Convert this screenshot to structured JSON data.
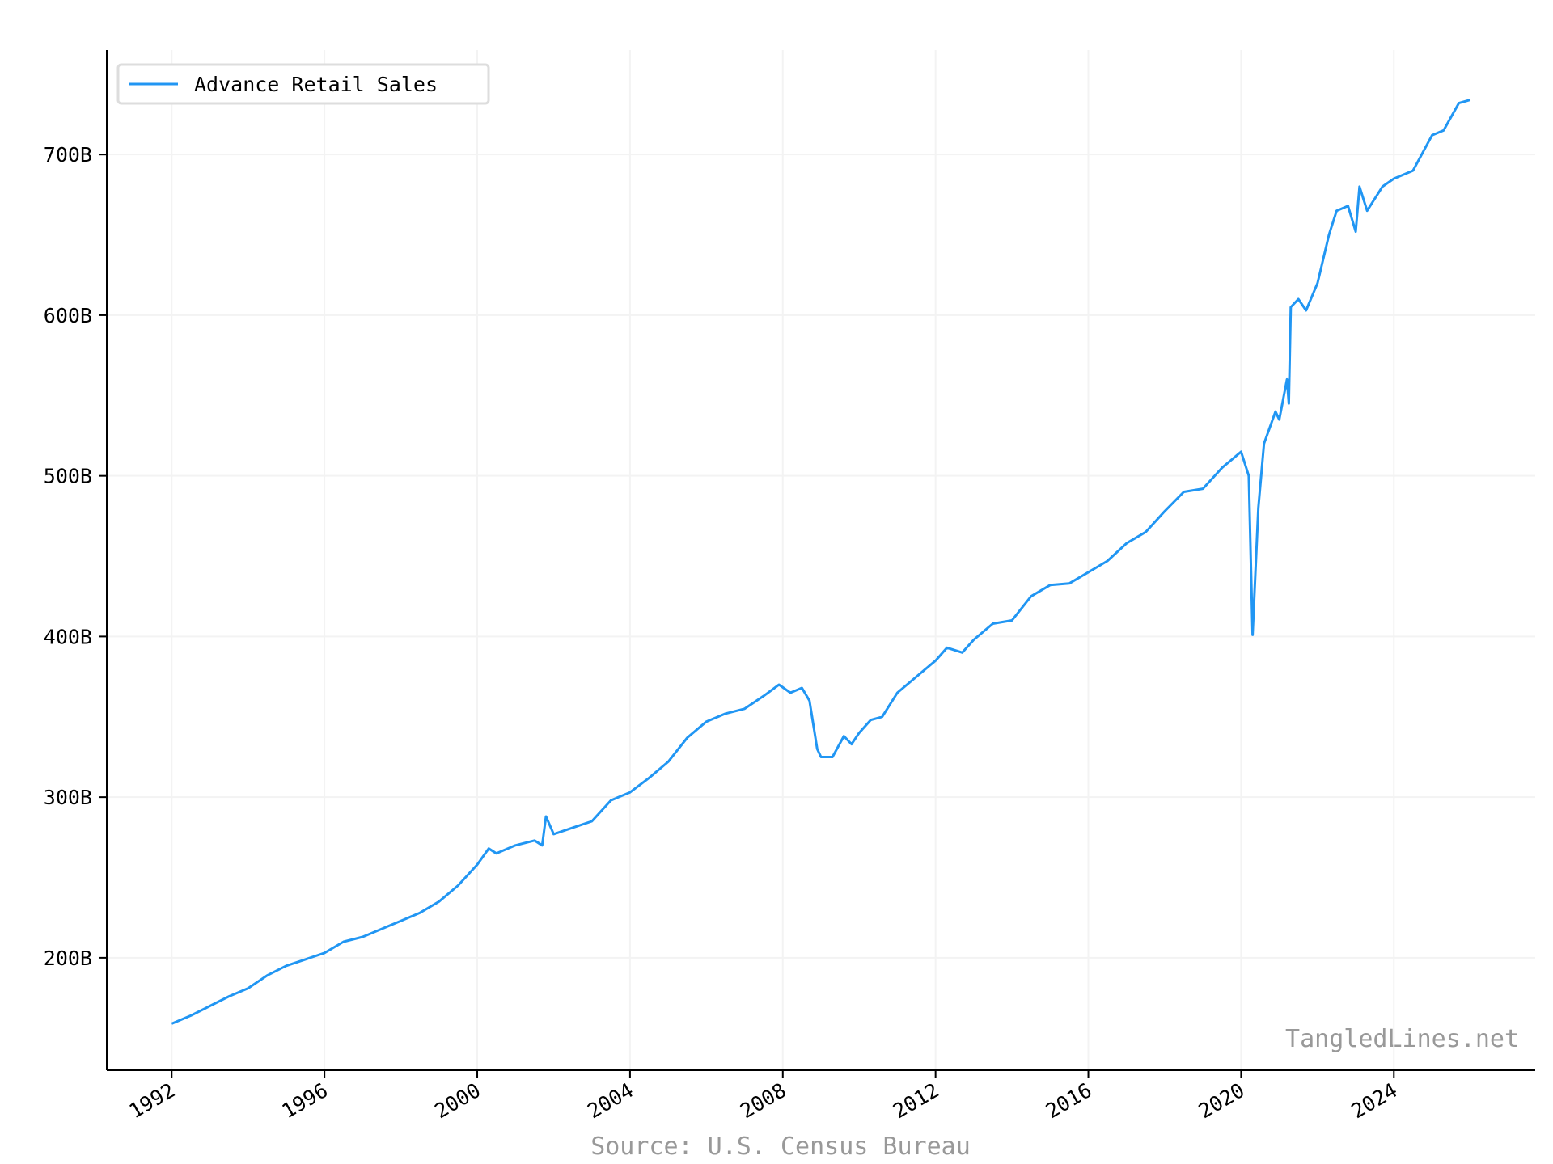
{
  "chart_data": {
    "type": "line",
    "x": [
      1992.0,
      1992.5,
      1993.0,
      1993.5,
      1994.0,
      1994.5,
      1995.0,
      1995.5,
      1996.0,
      1996.5,
      1997.0,
      1997.5,
      1998.0,
      1998.5,
      1999.0,
      1999.5,
      2000.0,
      2000.3,
      2000.5,
      2001.0,
      2001.5,
      2001.7,
      2001.8,
      2002.0,
      2002.5,
      2003.0,
      2003.5,
      2004.0,
      2004.5,
      2005.0,
      2005.5,
      2006.0,
      2006.5,
      2007.0,
      2007.5,
      2007.9,
      2008.2,
      2008.5,
      2008.7,
      2008.9,
      2009.0,
      2009.3,
      2009.6,
      2009.8,
      2010.0,
      2010.3,
      2010.6,
      2011.0,
      2011.5,
      2012.0,
      2012.3,
      2012.7,
      2013.0,
      2013.5,
      2014.0,
      2014.5,
      2015.0,
      2015.5,
      2016.0,
      2016.5,
      2017.0,
      2017.5,
      2018.0,
      2018.5,
      2019.0,
      2019.5,
      2020.0,
      2020.2,
      2020.3,
      2020.45,
      2020.6,
      2020.9,
      2021.0,
      2021.2,
      2021.25,
      2021.3,
      2021.5,
      2021.7,
      2022.0,
      2022.3,
      2022.5,
      2022.8,
      2023.0,
      2023.1,
      2023.3,
      2023.7,
      2024.0,
      2024.5,
      2025.0,
      2025.3,
      2025.7,
      2026.0
    ],
    "series": [
      {
        "name": "Advance Retail Sales",
        "color": "#2196f3",
        "values": [
          159,
          164,
          170,
          176,
          181,
          189,
          195,
          199,
          203,
          210,
          213,
          218,
          223,
          228,
          235,
          245,
          258,
          268,
          265,
          270,
          273,
          270,
          288,
          277,
          281,
          285,
          298,
          303,
          312,
          322,
          337,
          347,
          352,
          355,
          363,
          370,
          365,
          368,
          360,
          330,
          325,
          325,
          338,
          333,
          340,
          348,
          350,
          365,
          375,
          385,
          393,
          390,
          398,
          408,
          410,
          425,
          432,
          433,
          440,
          447,
          458,
          465,
          478,
          490,
          492,
          505,
          515,
          500,
          401,
          480,
          520,
          540,
          535,
          560,
          545,
          605,
          610,
          603,
          620,
          650,
          665,
          668,
          652,
          680,
          665,
          680,
          685,
          690,
          712,
          715,
          732,
          734
        ]
      }
    ],
    "xlim": [
      1990.3,
      2027.7
    ],
    "xticks": [
      1992,
      1996,
      2000,
      2004,
      2008,
      2012,
      2016,
      2020,
      2024
    ],
    "ylim": [
      130,
      765
    ],
    "yticks": [
      {
        "value": 200,
        "label": "200B"
      },
      {
        "value": 300,
        "label": "300B"
      },
      {
        "value": 400,
        "label": "400B"
      },
      {
        "value": 500,
        "label": "500B"
      },
      {
        "value": 600,
        "label": "600B"
      },
      {
        "value": 700,
        "label": "700B"
      }
    ],
    "grid": true,
    "legend": "upper left",
    "watermark": "TangledLines.net",
    "source": "Source: U.S. Census Bureau"
  }
}
